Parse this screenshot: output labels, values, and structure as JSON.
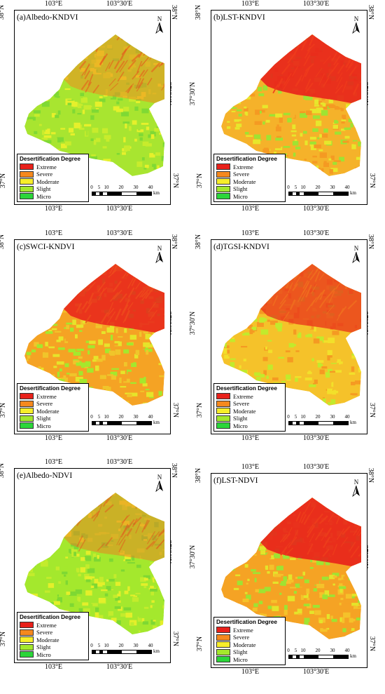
{
  "panels": [
    {
      "title": "(a)Albedo-KNDVI"
    },
    {
      "title": "(b)LST-KNDVI"
    },
    {
      "title": "(c)SWCI-KNDVI"
    },
    {
      "title": "(d)TGSI-KNDVI"
    },
    {
      "title": "(e)Albedo-NDVI"
    },
    {
      "title": "(f)LST-NDVI"
    }
  ],
  "axes": {
    "top_left": "103°E",
    "top_right": "103°30′E",
    "bottom_left": "103°E",
    "bottom_right": "103°30′E",
    "lat_top": "38°N",
    "lat_mid": "37°30′N",
    "lat_bottom": "37°N"
  },
  "north_label": "N",
  "legend": {
    "title": "Desertification Degree",
    "items": [
      {
        "label": "Extreme",
        "color": "#e8211b"
      },
      {
        "label": "Severe",
        "color": "#f5891e"
      },
      {
        "label": "Moderate",
        "color": "#f7ee2a"
      },
      {
        "label": "Slight",
        "color": "#a4e82d"
      },
      {
        "label": "Micro",
        "color": "#2bd63a"
      }
    ]
  },
  "scale": {
    "ticks": [
      "0",
      "5",
      "10",
      "20",
      "30",
      "40"
    ],
    "unit": "km"
  }
}
